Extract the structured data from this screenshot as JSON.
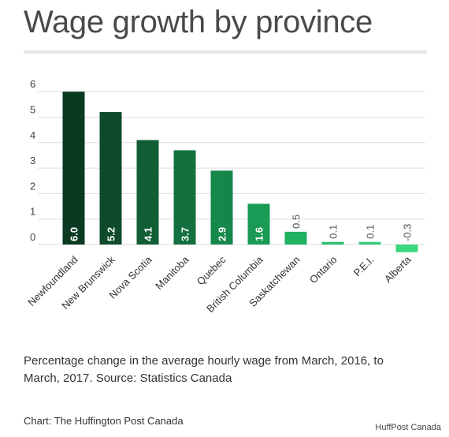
{
  "title": "Wage growth by province",
  "caption": "Percentage change in the average hourly wage from March, 2016, to March, 2017. Source: Statistics Canada",
  "credit": "Chart: The Huffington Post Canada",
  "watermark": "HuffPost Canada",
  "chart_data": {
    "type": "bar",
    "categories": [
      "Newfoundland",
      "New Brunswick",
      "Nova Scotia",
      "Manitoba",
      "Quebec",
      "British Columbia",
      "Saskatchewan",
      "Ontario",
      "P.E.I.",
      "Alberta"
    ],
    "values": [
      6.0,
      5.2,
      4.1,
      3.7,
      2.9,
      1.6,
      0.5,
      0.1,
      0.1,
      -0.3
    ],
    "value_labels": [
      "6.0",
      "5.2",
      "4.1",
      "3.7",
      "2.9",
      "1.6",
      "0.5",
      "0.1",
      "0.1",
      "-0.3"
    ],
    "y_ticks": [
      0,
      1,
      2,
      3,
      4,
      5,
      6
    ],
    "ylim": [
      -0.3,
      6.0
    ],
    "grid": true,
    "colors": [
      "#0b3a22",
      "#0e4a2b",
      "#115e35",
      "#137140",
      "#16874b",
      "#1a9b55",
      "#1fb060",
      "#27c06c",
      "#2fcc75",
      "#3bd87f"
    ],
    "label_color_inside": "#ffffff",
    "label_color_outside": "#555555",
    "grid_color": "#dddddd"
  }
}
